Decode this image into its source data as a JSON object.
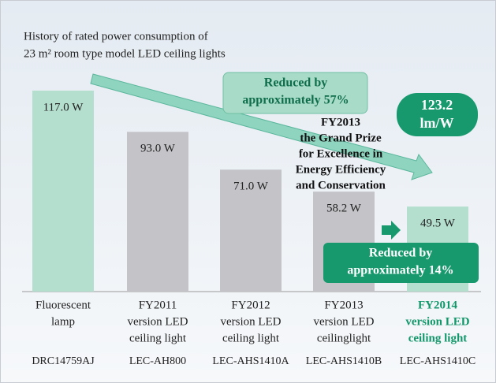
{
  "chart_data": {
    "type": "bar",
    "title": [
      "History of rated power consumption of",
      "23 m² room type model LED ceiling lights"
    ],
    "categories": [
      [
        "Fluorescent",
        "lamp"
      ],
      [
        "FY2011",
        "version LED",
        "ceiling light"
      ],
      [
        "FY2012",
        "version LED",
        "ceiling light"
      ],
      [
        "FY2013",
        "version LED",
        "ceilinglight"
      ],
      [
        "FY2014",
        "version LED",
        "ceiling light"
      ]
    ],
    "models": [
      "DRC14759AJ",
      "LEC-AH800",
      "LEC-AHS1410A",
      "LEC-AHS1410B",
      "LEC-AHS1410C"
    ],
    "values": [
      117.0,
      93.0,
      71.0,
      58.2,
      49.5
    ],
    "value_labels": [
      "117.0 W",
      "93.0 W",
      "71.0 W",
      "58.2 W",
      "49.5 W"
    ],
    "colors": [
      "#b4dfcf",
      "#c4c4c8",
      "#c4c4c8",
      "#c4c4c8",
      "#b4dfcf"
    ],
    "highlight_color": "#12976a",
    "highlight_category": 4,
    "annotations": {
      "reduction_total": [
        "Reduced by",
        "approximately 57%"
      ],
      "efficiency": [
        "123.2",
        "lm/W"
      ],
      "award": [
        "FY2013",
        "the Grand Prize",
        "for Excellence in",
        "Energy Efficiency",
        "and Conservation"
      ],
      "reduction_last": [
        "Reduced by",
        "approximately 14%"
      ]
    }
  }
}
